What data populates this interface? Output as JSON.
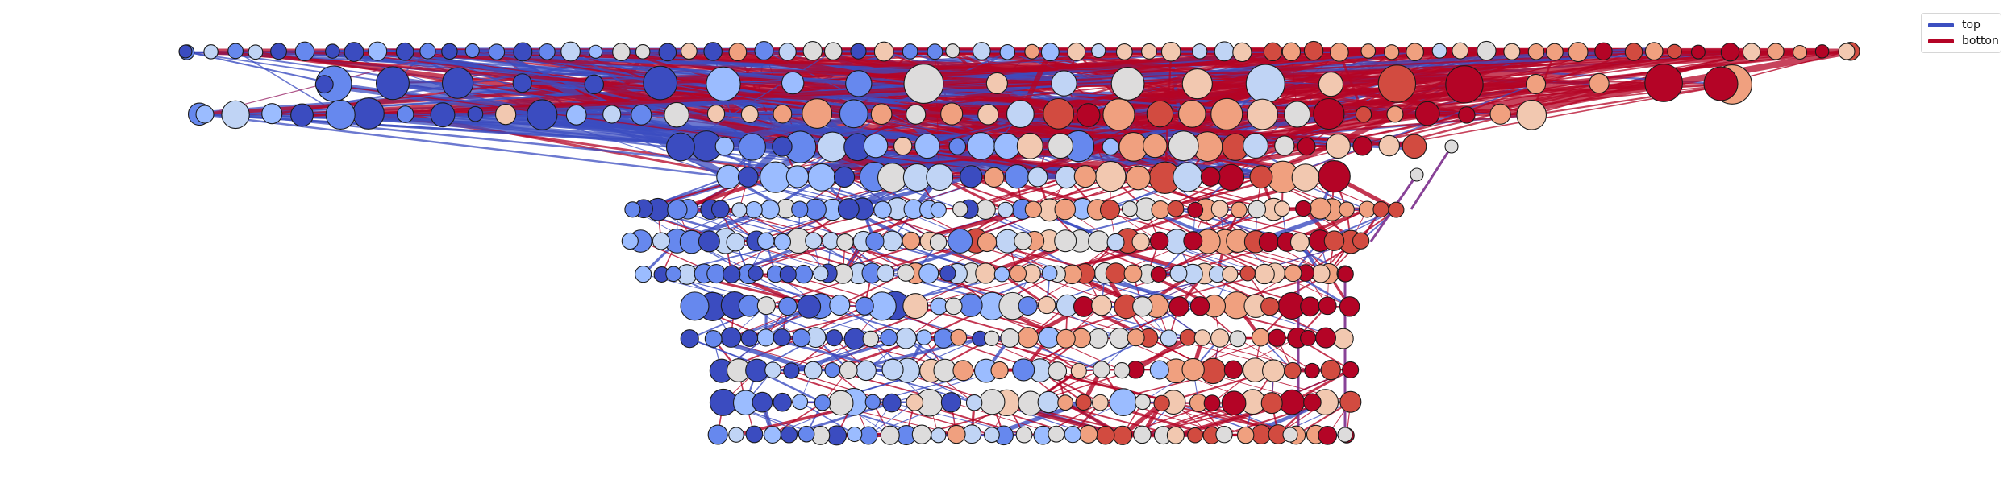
{
  "legend": {
    "items": [
      {
        "label": "top",
        "color": "#3c4fc0"
      },
      {
        "label": "botton",
        "color": "#b40426"
      }
    ]
  },
  "palette": {
    "deep_blue": "#3b4cc0",
    "blue": "#6688ee",
    "light_blue": "#9bbcff",
    "pale_blue": "#c0d4f5",
    "neutral": "#dddcdc",
    "pale_red": "#f2c8b0",
    "salmon": "#f0a07f",
    "red": "#d24b40",
    "deep_red": "#b40426",
    "purple_edge": "#7b2e8c"
  }
}
